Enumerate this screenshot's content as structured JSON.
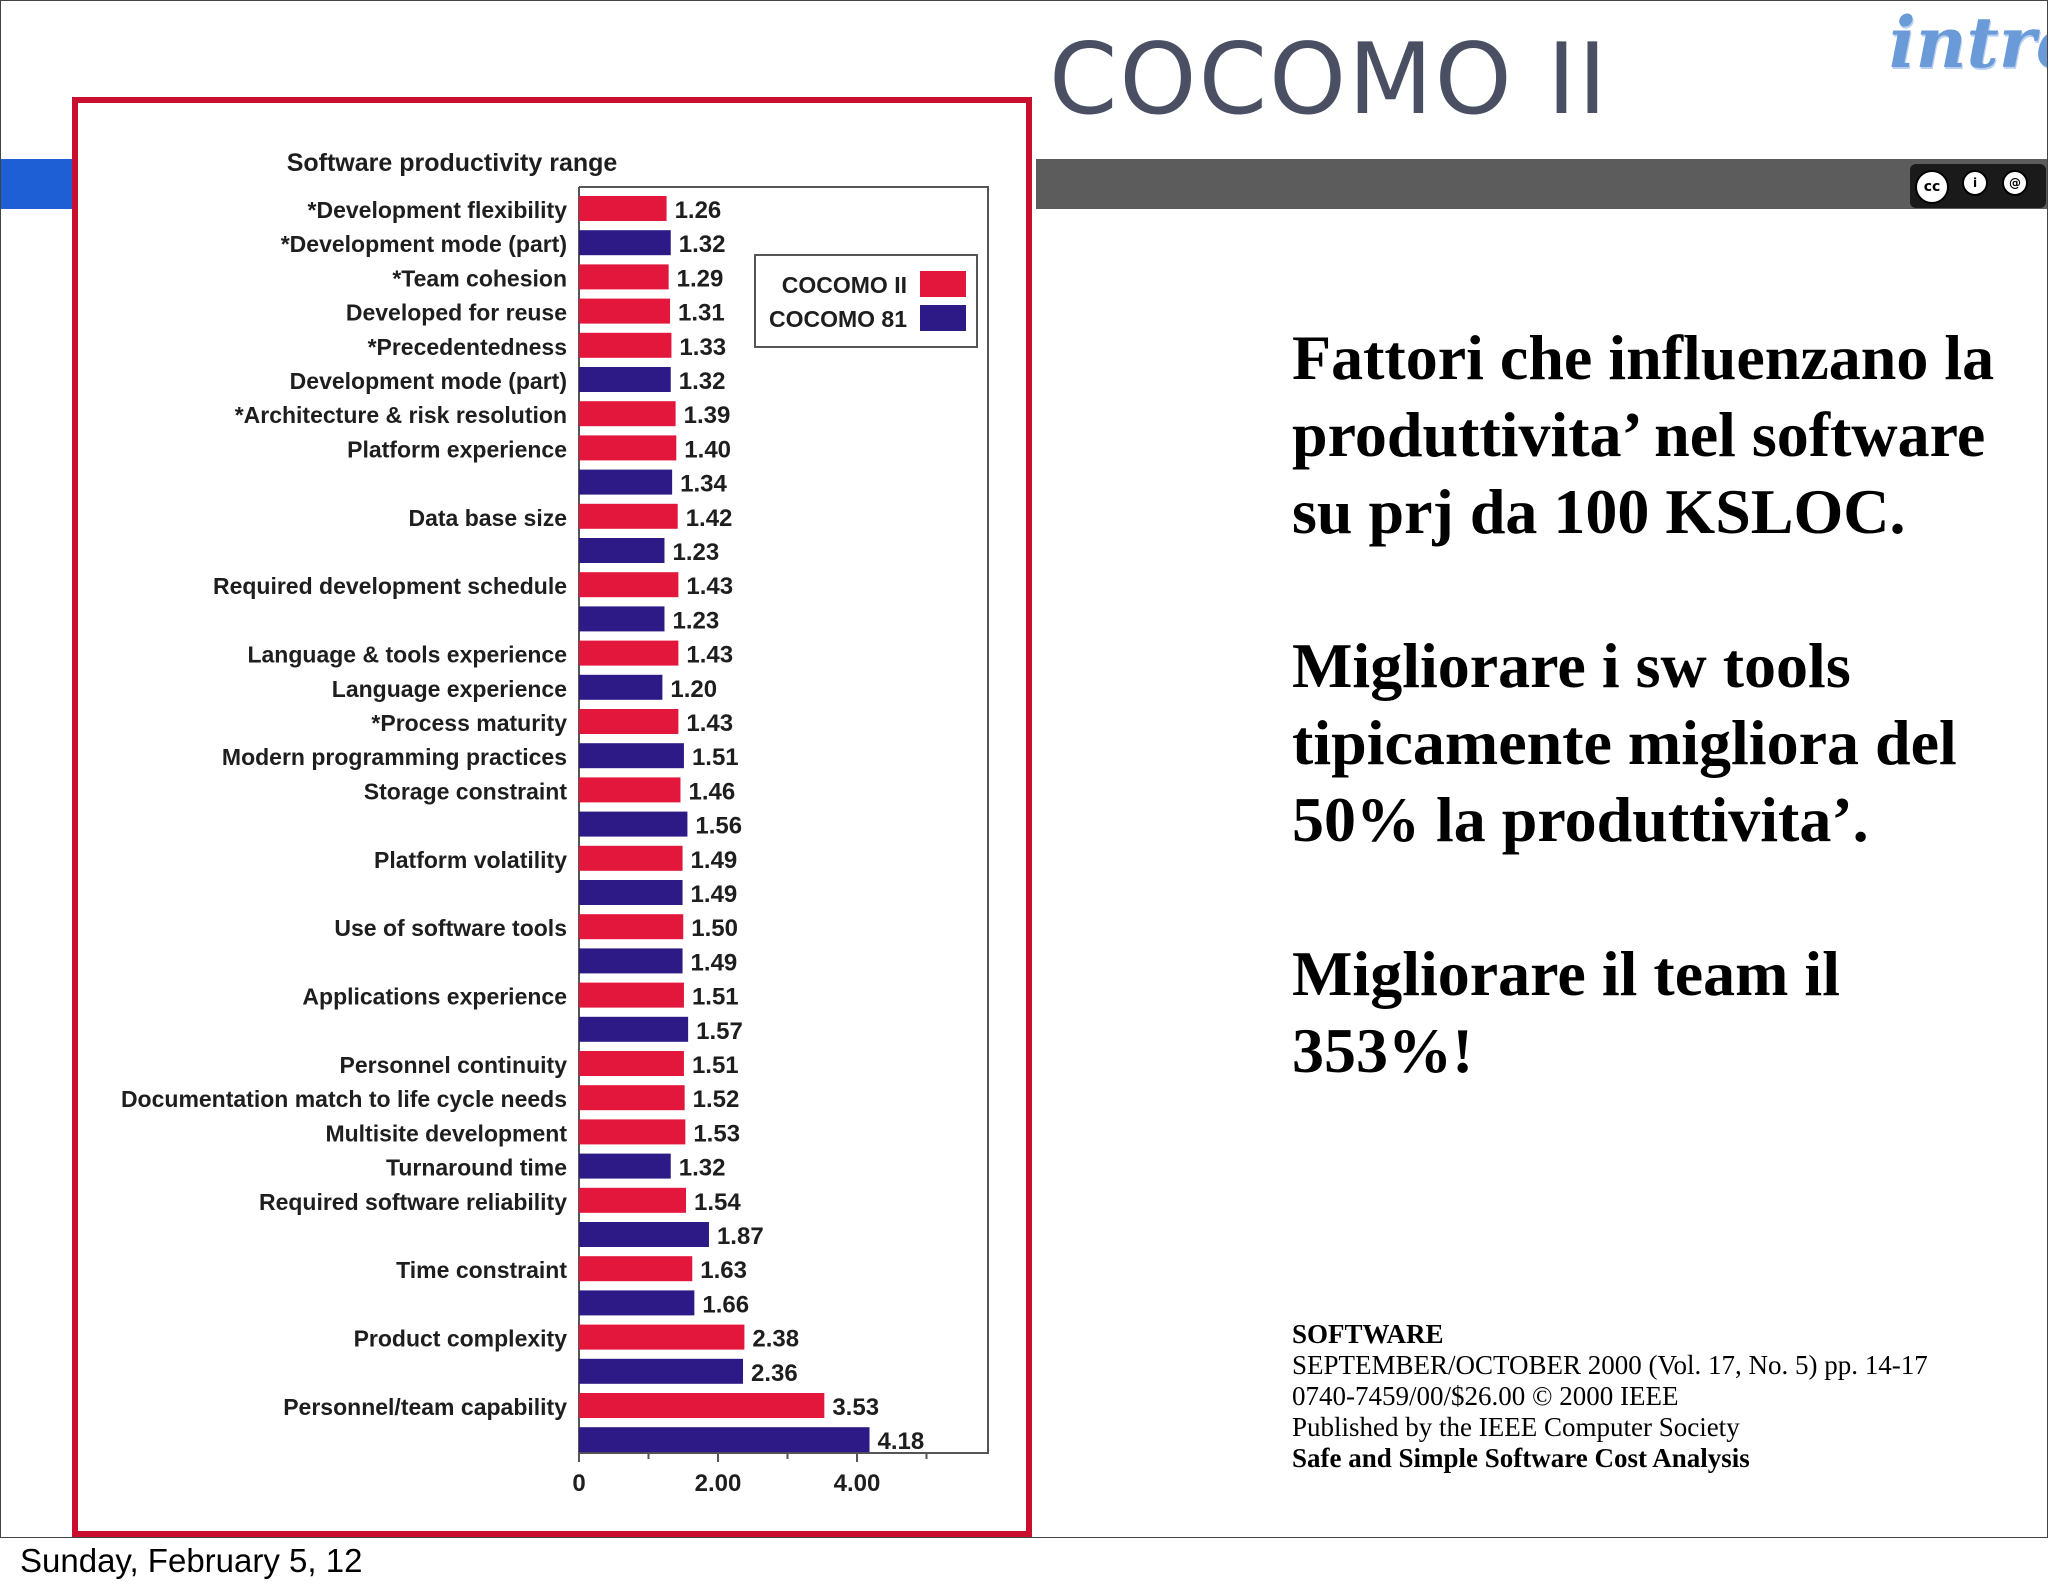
{
  "slide": {
    "title": "COCOMO II",
    "logo_text": "intre",
    "license_icon": "cc-by-sa-icon",
    "license_labels": [
      "cc",
      "i",
      "@"
    ],
    "body_paragraphs": [
      "Fattori che influenzano la produttivita’ nel software su prj da 100 KSLOC.",
      "Migliorare i sw tools tipicamente migliora del 50% la produttivita’.",
      "Migliorare il team il 353%!"
    ],
    "citation": {
      "line1": "SOFTWARE",
      "line2": "SEPTEMBER/OCTOBER 2000 (Vol. 17, No. 5) pp. 14-17",
      "line3": "0740-7459/00/$26.00 © 2000 IEEE",
      "line4": "Published by the IEEE Computer Society",
      "line5": "Safe and Simple Software Cost Analysis"
    },
    "footer_date": "Sunday, February 5, 12",
    "colors": {
      "frame": "#c8102e",
      "band_blue": "#1f5fd6",
      "band_gray": "#5c5c5c",
      "title": "#4a4f63"
    }
  },
  "chart_data": {
    "type": "bar",
    "orientation": "horizontal",
    "title": "Software productivity range",
    "xlim": [
      0,
      6
    ],
    "xticks": [
      "0",
      "2.00",
      "4.00"
    ],
    "xtick_values": [
      0,
      2,
      4
    ],
    "grid": false,
    "legend_position": "top-right",
    "series": [
      {
        "name": "COCOMO II",
        "color": "#e3163c"
      },
      {
        "name": "COCOMO 81",
        "color": "#2e1a87"
      }
    ],
    "bars": [
      {
        "label": "*Development flexibility",
        "series": "COCOMO II",
        "value": 1.26,
        "value_label": "1.26"
      },
      {
        "label": "*Development mode (part)",
        "series": "COCOMO 81",
        "value": 1.32,
        "value_label": "1.32"
      },
      {
        "label": "*Team cohesion",
        "series": "COCOMO II",
        "value": 1.29,
        "value_label": "1.29"
      },
      {
        "label": "Developed for reuse",
        "series": "COCOMO II",
        "value": 1.31,
        "value_label": "1.31"
      },
      {
        "label": "*Precedentedness",
        "series": "COCOMO II",
        "value": 1.33,
        "value_label": "1.33"
      },
      {
        "label": "Development mode (part)",
        "series": "COCOMO 81",
        "value": 1.32,
        "value_label": "1.32"
      },
      {
        "label": "*Architecture & risk resolution",
        "series": "COCOMO II",
        "value": 1.39,
        "value_label": "1.39"
      },
      {
        "label": "Platform experience",
        "series": "COCOMO II",
        "value": 1.4,
        "value_label": "1.40"
      },
      {
        "label": "",
        "series": "COCOMO 81",
        "value": 1.34,
        "value_label": "1.34"
      },
      {
        "label": "Data base size",
        "series": "COCOMO II",
        "value": 1.42,
        "value_label": "1.42"
      },
      {
        "label": "",
        "series": "COCOMO 81",
        "value": 1.23,
        "value_label": "1.23"
      },
      {
        "label": "Required development schedule",
        "series": "COCOMO II",
        "value": 1.43,
        "value_label": "1.43"
      },
      {
        "label": "",
        "series": "COCOMO 81",
        "value": 1.23,
        "value_label": "1.23"
      },
      {
        "label": "Language & tools experience",
        "series": "COCOMO II",
        "value": 1.43,
        "value_label": "1.43"
      },
      {
        "label": "Language experience",
        "series": "COCOMO 81",
        "value": 1.2,
        "value_label": "1.20"
      },
      {
        "label": "*Process maturity",
        "series": "COCOMO II",
        "value": 1.43,
        "value_label": "1.43"
      },
      {
        "label": "Modern programming practices",
        "series": "COCOMO 81",
        "value": 1.51,
        "value_label": "1.51"
      },
      {
        "label": "Storage constraint",
        "series": "COCOMO II",
        "value": 1.46,
        "value_label": "1.46"
      },
      {
        "label": "",
        "series": "COCOMO 81",
        "value": 1.56,
        "value_label": "1.56"
      },
      {
        "label": "Platform volatility",
        "series": "COCOMO II",
        "value": 1.49,
        "value_label": "1.49"
      },
      {
        "label": "",
        "series": "COCOMO 81",
        "value": 1.49,
        "value_label": "1.49"
      },
      {
        "label": "Use of software tools",
        "series": "COCOMO II",
        "value": 1.5,
        "value_label": "1.50"
      },
      {
        "label": "",
        "series": "COCOMO 81",
        "value": 1.49,
        "value_label": "1.49"
      },
      {
        "label": "Applications experience",
        "series": "COCOMO II",
        "value": 1.51,
        "value_label": "1.51"
      },
      {
        "label": "",
        "series": "COCOMO 81",
        "value": 1.57,
        "value_label": "1.57"
      },
      {
        "label": "Personnel continuity",
        "series": "COCOMO II",
        "value": 1.51,
        "value_label": "1.51"
      },
      {
        "label": "Documentation match to life cycle needs",
        "series": "COCOMO II",
        "value": 1.52,
        "value_label": "1.52"
      },
      {
        "label": "Multisite development",
        "series": "COCOMO II",
        "value": 1.53,
        "value_label": "1.53"
      },
      {
        "label": "Turnaround time",
        "series": "COCOMO 81",
        "value": 1.32,
        "value_label": "1.32"
      },
      {
        "label": "Required software reliability",
        "series": "COCOMO II",
        "value": 1.54,
        "value_label": "1.54"
      },
      {
        "label": "",
        "series": "COCOMO 81",
        "value": 1.87,
        "value_label": "1.87"
      },
      {
        "label": "Time constraint",
        "series": "COCOMO II",
        "value": 1.63,
        "value_label": "1.63"
      },
      {
        "label": "",
        "series": "COCOMO 81",
        "value": 1.66,
        "value_label": "1.66"
      },
      {
        "label": "Product complexity",
        "series": "COCOMO II",
        "value": 2.38,
        "value_label": "2.38"
      },
      {
        "label": "",
        "series": "COCOMO 81",
        "value": 2.36,
        "value_label": "2.36"
      },
      {
        "label": "Personnel/team capability",
        "series": "COCOMO II",
        "value": 3.53,
        "value_label": "3.53"
      },
      {
        "label": "",
        "series": "COCOMO 81",
        "value": 4.18,
        "value_label": "4.18"
      }
    ]
  }
}
